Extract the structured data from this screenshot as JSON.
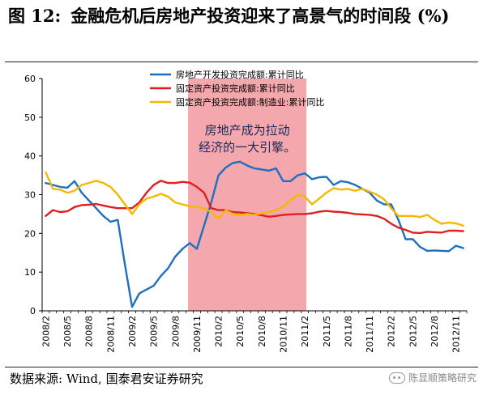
{
  "header": {
    "figure_number": "图 12:",
    "title": "金融危机后房地产投资迎来了高景气的时间段 (%)"
  },
  "footer": {
    "source": "数据来源: Wind, 国泰君安证券研究",
    "watermark": "陈显顺策略研究"
  },
  "chart_data": {
    "type": "line",
    "title": "",
    "xlabel": "",
    "ylabel": "",
    "ylim": [
      0,
      60
    ],
    "yticks": [
      0,
      10,
      20,
      30,
      40,
      50,
      60
    ],
    "x": [
      "2008/2",
      "2008/3",
      "2008/4",
      "2008/5",
      "2008/6",
      "2008/7",
      "2008/8",
      "2008/9",
      "2008/10",
      "2008/11",
      "2008/12",
      "2009/1",
      "2009/2",
      "2009/3",
      "2009/4",
      "2009/5",
      "2009/6",
      "2009/7",
      "2009/8",
      "2009/9",
      "2009/10",
      "2009/11",
      "2009/12",
      "2010/1",
      "2010/2",
      "2010/3",
      "2010/4",
      "2010/5",
      "2010/6",
      "2010/7",
      "2010/8",
      "2010/9",
      "2010/10",
      "2010/11",
      "2010/12",
      "2011/1",
      "2011/2",
      "2011/3",
      "2011/4",
      "2011/5",
      "2011/6",
      "2011/7",
      "2011/8",
      "2011/9",
      "2011/10",
      "2011/11",
      "2011/12",
      "2012/1",
      "2012/2",
      "2012/3",
      "2012/4",
      "2012/5",
      "2012/6",
      "2012/7",
      "2012/8",
      "2012/9",
      "2012/10",
      "2012/11",
      "2012/12"
    ],
    "xticks": [
      "2008/2",
      "2008/5",
      "2008/8",
      "2008/11",
      "2009/2",
      "2009/5",
      "2009/8",
      "2009/11",
      "2010/2",
      "2010/5",
      "2010/8",
      "2010/11",
      "2011/2",
      "2011/5",
      "2011/8",
      "2011/11",
      "2012/2",
      "2012/5",
      "2012/8",
      "2012/11"
    ],
    "series": [
      {
        "name": "房地产开发投资完成额:累计同比",
        "color": "#1f6fbf",
        "values": [
          33.0,
          32.5,
          32.0,
          31.8,
          33.5,
          30.5,
          28.5,
          26.5,
          24.5,
          23.0,
          23.5,
          12.0,
          1.0,
          4.5,
          5.5,
          6.5,
          9.0,
          11.0,
          14.0,
          16.0,
          17.5,
          16.0,
          22.0,
          28.0,
          35.0,
          37.0,
          38.2,
          38.5,
          37.5,
          36.8,
          36.5,
          36.2,
          36.8,
          33.5,
          33.5,
          35.0,
          35.5,
          34.0,
          34.5,
          34.6,
          32.5,
          33.5,
          33.2,
          32.5,
          31.5,
          30.5,
          28.5,
          27.5,
          27.5,
          23.5,
          18.5,
          18.5,
          16.5,
          15.5,
          15.6,
          15.5,
          15.4,
          16.8,
          16.2
        ]
      },
      {
        "name": "固定资产投资完成额:累计同比",
        "color": "#e02020",
        "values": [
          24.5,
          26.0,
          25.5,
          25.7,
          26.8,
          27.3,
          27.4,
          27.6,
          27.2,
          26.8,
          26.5,
          26.5,
          26.5,
          28.0,
          30.5,
          32.5,
          33.6,
          33.0,
          33.0,
          33.3,
          33.1,
          32.0,
          30.5,
          26.5,
          26.0,
          26.0,
          25.5,
          25.4,
          25.2,
          25.0,
          24.7,
          24.3,
          24.5,
          24.8,
          24.9,
          25.0,
          25.0,
          25.2,
          25.6,
          25.8,
          25.6,
          25.5,
          25.3,
          25.0,
          24.9,
          24.8,
          24.5,
          23.8,
          22.5,
          21.5,
          20.9,
          20.2,
          20.1,
          20.4,
          20.3,
          20.2,
          20.7,
          20.7,
          20.6
        ]
      },
      {
        "name": "固定资产投资完成额:制造业:累计同比",
        "color": "#f5b800",
        "values": [
          35.8,
          31.5,
          31.3,
          30.5,
          31.0,
          32.5,
          33.0,
          33.6,
          33.0,
          32.0,
          30.0,
          27.5,
          25.0,
          27.5,
          29.0,
          29.5,
          30.2,
          29.5,
          28.0,
          27.5,
          27.0,
          26.8,
          26.5,
          25.5,
          23.8,
          26.0,
          25.0,
          24.8,
          25.0,
          24.8,
          25.2,
          25.5,
          26.0,
          27.0,
          28.5,
          30.0,
          29.5,
          27.5,
          29.0,
          30.5,
          31.7,
          31.3,
          31.5,
          31.0,
          31.5,
          30.8,
          30.0,
          28.8,
          26.5,
          24.5,
          24.5,
          24.5,
          24.2,
          24.8,
          23.5,
          22.5,
          22.8,
          22.6,
          22.0
        ]
      }
    ],
    "highlight": {
      "from": "2009/10",
      "to": "2011/2",
      "color": "#f4a7ac"
    },
    "annotation": {
      "lines": [
        "房地产成为拉动",
        "经济的一大引擎。"
      ]
    },
    "legend_placement": "top-center",
    "grid": false
  }
}
